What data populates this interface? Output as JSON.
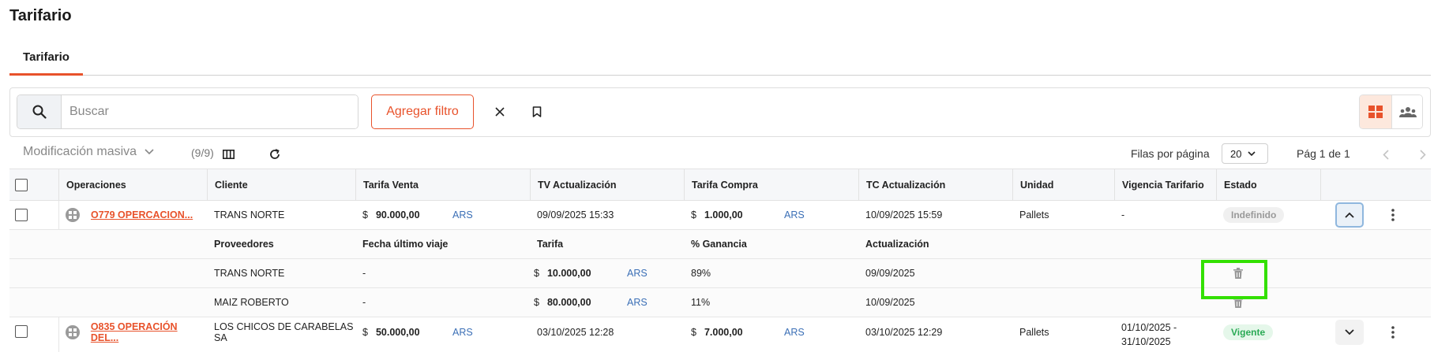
{
  "page": {
    "title": "Tarifario"
  },
  "tabs": [
    {
      "label": "Tarifario",
      "active": true
    }
  ],
  "toolbar": {
    "search_placeholder": "Buscar",
    "filter_label": "Agregar filtro",
    "search_icon": "search-icon",
    "clear_icon": "close-icon",
    "bookmark_icon": "bookmark-icon",
    "views": [
      "grid-view-icon",
      "group-view-icon"
    ]
  },
  "actions": {
    "bulk_label": "Modificación masiva",
    "count": "(9/9)",
    "rows_per_page_label": "Filas por página",
    "rows_per_page": "20",
    "page_label": "Pág 1 de 1"
  },
  "table": {
    "headers": [
      "Operaciones",
      "Cliente",
      "Tarifa Venta",
      "TV Actualización",
      "Tarifa Compra",
      "TC Actualización",
      "Unidad",
      "Vigencia Tarifario",
      "Estado"
    ],
    "rows": [
      {
        "operation": "O779 OPERCACION...",
        "client": "TRANS NORTE",
        "sale_symbol": "$",
        "sale_amount": "90.000,00",
        "sale_currency": "ARS",
        "tv_update": "09/09/2025 15:33",
        "buy_symbol": "$",
        "buy_amount": "1.000,00",
        "buy_currency": "ARS",
        "tc_update": "10/09/2025 15:59",
        "unit": "Pallets",
        "validity": "-",
        "validity_2": "",
        "status": "Indefinido"
      },
      {
        "operation": "O835 OPERACIÓN DEL...",
        "client": "LOS CHICOS DE CARABELAS SA",
        "sale_symbol": "$",
        "sale_amount": "50.000,00",
        "sale_currency": "ARS",
        "tv_update": "03/10/2025 12:28",
        "buy_symbol": "$",
        "buy_amount": "7.000,00",
        "buy_currency": "ARS",
        "tc_update": "03/10/2025 12:29",
        "unit": "Pallets",
        "validity": "01/10/2025 -",
        "validity_2": "31/10/2025",
        "status": "Vigente"
      }
    ],
    "sub_headers": [
      "Proveedores",
      "Fecha último viaje",
      "Tarifa",
      "% Ganancia",
      "Actualización"
    ],
    "suppliers": [
      {
        "name": "TRANS NORTE",
        "last_trip": "-",
        "symbol": "$",
        "amount": "10.000,00",
        "currency": "ARS",
        "gain": "89%",
        "update": "09/09/2025"
      },
      {
        "name": "MAIZ ROBERTO",
        "last_trip": "-",
        "symbol": "$",
        "amount": "80.000,00",
        "currency": "ARS",
        "gain": "11%",
        "update": "10/09/2025"
      }
    ]
  },
  "colors": {
    "accent": "#e8522b",
    "currency": "#3b6fb6",
    "highlight": "#33e000"
  }
}
